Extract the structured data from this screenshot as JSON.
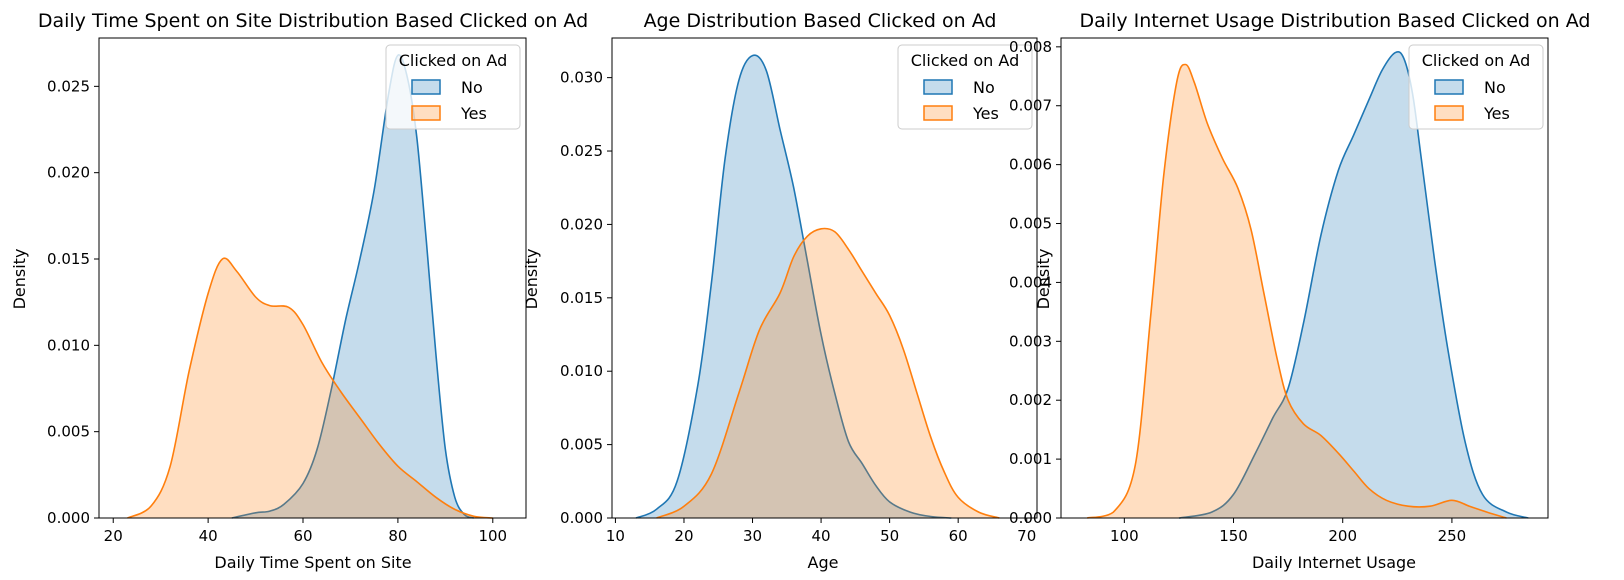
{
  "colors": {
    "No": "#1f77b4",
    "Yes": "#ff7f0e",
    "fill_alpha": 0.26
  },
  "chart_data": [
    {
      "type": "area",
      "title": "Daily Time Spent on Site Distribution Based Clicked on Ad",
      "xlabel": "Daily Time Spent on Site",
      "ylabel": "Density",
      "xlim": [
        17,
        107
      ],
      "ylim": [
        0,
        0.0278
      ],
      "xticks": [
        "20",
        "40",
        "60",
        "80",
        "100"
      ],
      "yticks": [
        "0.000",
        "0.005",
        "0.010",
        "0.015",
        "0.020",
        "0.025"
      ],
      "legend": {
        "title": "Clicked on Ad",
        "position": "top-right",
        "entries": [
          "No",
          "Yes"
        ]
      },
      "grid": false,
      "series": [
        {
          "name": "No",
          "x": [
            45,
            50,
            53,
            56,
            60,
            63,
            66,
            69,
            72,
            75,
            78,
            80,
            82,
            84,
            86,
            88,
            90,
            92,
            94,
            96
          ],
          "y": [
            0.0,
            0.0003,
            0.0004,
            0.0008,
            0.002,
            0.004,
            0.0075,
            0.0115,
            0.015,
            0.019,
            0.0245,
            0.0268,
            0.0255,
            0.022,
            0.016,
            0.0095,
            0.004,
            0.0012,
            0.0002,
            0.0
          ]
        },
        {
          "name": "Yes",
          "x": [
            23,
            28,
            32,
            36,
            40,
            43,
            46,
            50,
            53,
            57,
            60,
            64,
            68,
            72,
            76,
            80,
            84,
            88,
            92,
            96,
            100
          ],
          "y": [
            0.0,
            0.0007,
            0.003,
            0.0085,
            0.013,
            0.015,
            0.0143,
            0.0128,
            0.0123,
            0.0122,
            0.0112,
            0.009,
            0.0073,
            0.0058,
            0.0043,
            0.003,
            0.0021,
            0.0012,
            0.0005,
            0.0001,
            0.0
          ]
        }
      ]
    },
    {
      "type": "area",
      "title": "Age Distribution Based Clicked on Ad",
      "xlabel": "Age",
      "ylabel": "Density",
      "xlim": [
        9.5,
        71.5
      ],
      "ylim": [
        0,
        0.0327
      ],
      "xticks": [
        "10",
        "20",
        "30",
        "40",
        "50",
        "60",
        "70"
      ],
      "yticks": [
        "0.000",
        "0.005",
        "0.010",
        "0.015",
        "0.020",
        "0.025",
        "0.030"
      ],
      "legend": {
        "title": "Clicked on Ad",
        "position": "top-right",
        "entries": [
          "No",
          "Yes"
        ]
      },
      "grid": false,
      "series": [
        {
          "name": "No",
          "x": [
            13,
            16,
            19,
            22,
            24,
            26,
            28,
            30,
            32,
            34,
            36,
            38,
            40,
            42,
            44,
            46,
            48,
            50,
            53,
            56,
            59
          ],
          "y": [
            0.0,
            0.0006,
            0.0025,
            0.009,
            0.016,
            0.0245,
            0.0298,
            0.0315,
            0.0305,
            0.0265,
            0.0225,
            0.0175,
            0.0125,
            0.0085,
            0.0052,
            0.0037,
            0.0022,
            0.0011,
            0.0004,
            0.0001,
            0.0
          ]
        },
        {
          "name": "Yes",
          "x": [
            16,
            20,
            24,
            28,
            31,
            34,
            36,
            38,
            40,
            42,
            44,
            46,
            48,
            50,
            52,
            54,
            56,
            58,
            60,
            63,
            66
          ],
          "y": [
            0.0,
            0.0008,
            0.003,
            0.0085,
            0.0128,
            0.0153,
            0.0178,
            0.0192,
            0.0197,
            0.0195,
            0.0183,
            0.0168,
            0.0153,
            0.0138,
            0.0115,
            0.0085,
            0.0055,
            0.0031,
            0.0014,
            0.0004,
            0.0
          ]
        }
      ]
    },
    {
      "type": "area",
      "title": "Daily Internet Usage Distribution Based Clicked on Ad",
      "xlabel": "Daily Internet Usage",
      "ylabel": "Density",
      "xlim": [
        71,
        294
      ],
      "ylim": [
        0,
        0.00815
      ],
      "xticks": [
        "100",
        "150",
        "200",
        "250"
      ],
      "yticks": [
        "0.000",
        "0.001",
        "0.002",
        "0.003",
        "0.004",
        "0.005",
        "0.006",
        "0.007",
        "0.008"
      ],
      "legend": {
        "title": "Clicked on Ad",
        "position": "top-right",
        "entries": [
          "No",
          "Yes"
        ]
      },
      "grid": false,
      "series": [
        {
          "name": "No",
          "x": [
            125,
            140,
            150,
            160,
            168,
            175,
            182,
            190,
            198,
            205,
            212,
            218,
            224,
            228,
            232,
            236,
            242,
            248,
            256,
            264,
            275,
            285
          ],
          "y": [
            0.0,
            0.0001,
            0.0004,
            0.0011,
            0.0017,
            0.0022,
            0.0033,
            0.0048,
            0.0059,
            0.0065,
            0.0071,
            0.0076,
            0.0079,
            0.0078,
            0.0072,
            0.0061,
            0.0044,
            0.0029,
            0.0013,
            0.0004,
            0.0001,
            0.0
          ]
        },
        {
          "name": "Yes",
          "x": [
            83,
            95,
            105,
            112,
            118,
            124,
            128,
            132,
            138,
            145,
            152,
            158,
            164,
            170,
            175,
            182,
            190,
            198,
            205,
            212,
            220,
            230,
            240,
            250,
            258,
            266,
            275
          ],
          "y": [
            0.0,
            0.0001,
            0.0009,
            0.0034,
            0.0058,
            0.0074,
            0.0077,
            0.0074,
            0.0067,
            0.0061,
            0.0056,
            0.0049,
            0.0038,
            0.0027,
            0.002,
            0.0016,
            0.0014,
            0.0011,
            0.0008,
            0.0005,
            0.0003,
            0.0002,
            0.0002,
            0.0003,
            0.0002,
            0.0001,
            0.0
          ]
        }
      ]
    }
  ]
}
